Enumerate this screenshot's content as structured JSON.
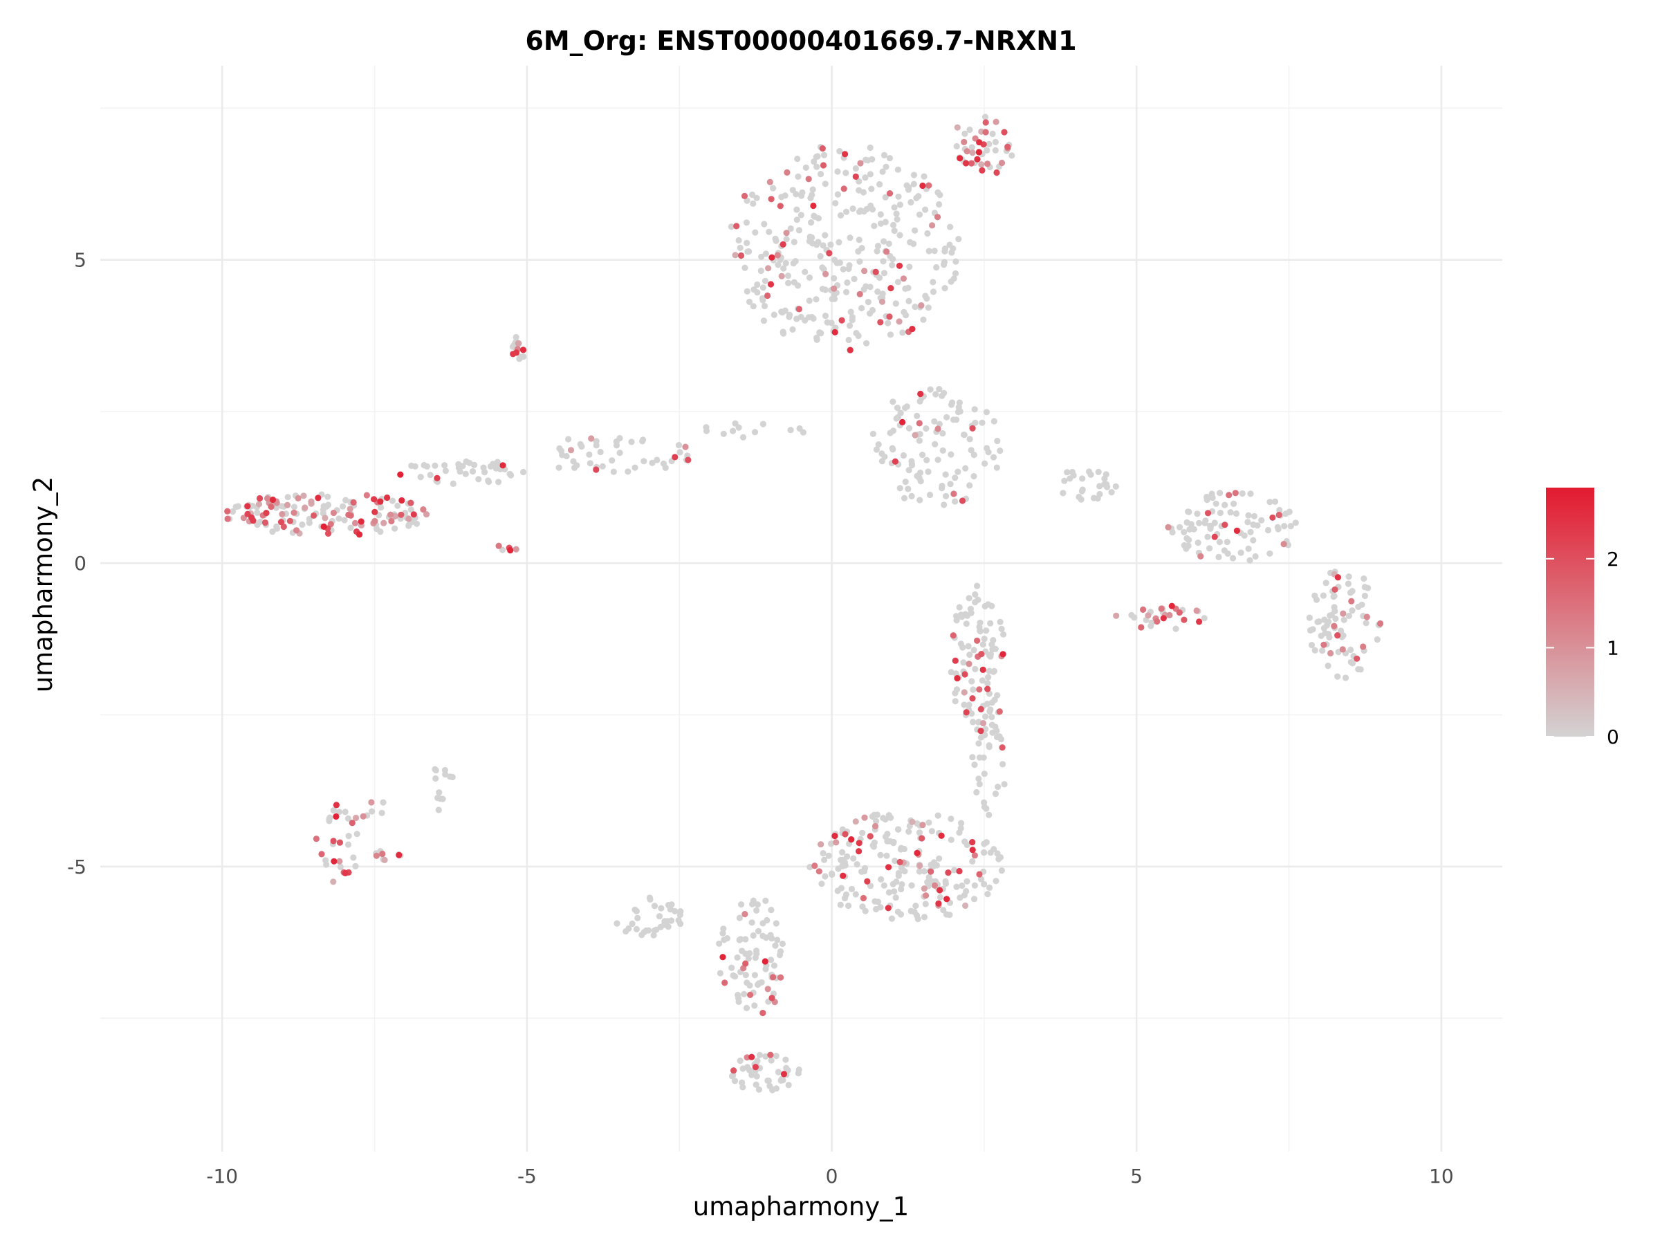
{
  "chart_data": {
    "type": "scatter",
    "title": "6M_Org: ENST00000401669.7-NRXN1",
    "xlabel": "umapharmony_1",
    "ylabel": "umapharmony_2",
    "xlim": [
      -12.0,
      11.0
    ],
    "ylim": [
      -9.7,
      8.2
    ],
    "x_ticks": [
      -10,
      -5,
      0,
      5,
      10
    ],
    "x_tick_labels": [
      "-10",
      "-5",
      "0",
      "5",
      "10"
    ],
    "y_ticks": [
      -5,
      0,
      5
    ],
    "y_tick_labels": [
      "-5",
      "0",
      "5"
    ],
    "grid": true,
    "color_scale": {
      "low_color": "#d3d3d3",
      "high_color": "#e31a2f",
      "min": 0,
      "max": 2.8,
      "ticks": [
        0,
        1,
        2
      ],
      "tick_labels": [
        "0",
        "1",
        "2"
      ],
      "position": "right"
    },
    "point_color": "#d3d3d3",
    "clusters": [
      {
        "cx": -8.3,
        "cy": 0.8,
        "rx": 1.7,
        "ry": 0.35,
        "n": 150,
        "expr_frac": 0.45
      },
      {
        "cx": -6.0,
        "cy": 1.5,
        "rx": 1.2,
        "ry": 0.2,
        "n": 40,
        "expr_frac": 0.2
      },
      {
        "cx": -3.6,
        "cy": 1.8,
        "rx": 1.4,
        "ry": 0.3,
        "n": 45,
        "expr_frac": 0.1
      },
      {
        "cx": -1.2,
        "cy": 2.2,
        "rx": 0.9,
        "ry": 0.15,
        "n": 12,
        "expr_frac": 0.0
      },
      {
        "cx": -5.15,
        "cy": 3.5,
        "rx": 0.1,
        "ry": 0.25,
        "n": 14,
        "expr_frac": 0.4
      },
      {
        "cx": -5.2,
        "cy": 0.25,
        "rx": 0.35,
        "ry": 0.08,
        "n": 5,
        "expr_frac": 0.3
      },
      {
        "cx": 0.2,
        "cy": 5.2,
        "rx": 1.9,
        "ry": 1.7,
        "n": 330,
        "expr_frac": 0.16
      },
      {
        "cx": 2.5,
        "cy": 6.9,
        "rx": 0.5,
        "ry": 0.6,
        "n": 45,
        "expr_frac": 0.45
      },
      {
        "cx": 1.7,
        "cy": 1.9,
        "rx": 1.1,
        "ry": 1.0,
        "n": 110,
        "expr_frac": 0.1
      },
      {
        "cx": 2.4,
        "cy": -1.6,
        "rx": 0.45,
        "ry": 1.3,
        "n": 90,
        "expr_frac": 0.2
      },
      {
        "cx": 4.2,
        "cy": 1.3,
        "rx": 0.5,
        "ry": 0.3,
        "n": 25,
        "expr_frac": 0.0
      },
      {
        "cx": 5.5,
        "cy": -0.9,
        "rx": 0.9,
        "ry": 0.2,
        "n": 30,
        "expr_frac": 0.4
      },
      {
        "cx": 6.6,
        "cy": 0.6,
        "rx": 1.1,
        "ry": 0.6,
        "n": 90,
        "expr_frac": 0.15
      },
      {
        "cx": 8.4,
        "cy": -1.0,
        "rx": 0.6,
        "ry": 0.9,
        "n": 80,
        "expr_frac": 0.1
      },
      {
        "cx": 1.2,
        "cy": -5.0,
        "rx": 1.6,
        "ry": 0.9,
        "n": 210,
        "expr_frac": 0.2
      },
      {
        "cx": -1.3,
        "cy": -6.5,
        "rx": 0.6,
        "ry": 1.0,
        "n": 80,
        "expr_frac": 0.15
      },
      {
        "cx": -1.1,
        "cy": -8.4,
        "rx": 0.6,
        "ry": 0.3,
        "n": 45,
        "expr_frac": 0.1
      },
      {
        "cx": -3.0,
        "cy": -5.8,
        "rx": 0.6,
        "ry": 0.35,
        "n": 35,
        "expr_frac": 0.0
      },
      {
        "cx": 2.6,
        "cy": -3.2,
        "rx": 0.3,
        "ry": 1.0,
        "n": 40,
        "expr_frac": 0.1
      },
      {
        "cx": -8.1,
        "cy": -4.6,
        "rx": 0.4,
        "ry": 0.7,
        "n": 30,
        "expr_frac": 0.45
      },
      {
        "cx": -7.3,
        "cy": -4.8,
        "rx": 0.25,
        "ry": 0.1,
        "n": 10,
        "expr_frac": 0.5
      },
      {
        "cx": -6.4,
        "cy": -3.7,
        "rx": 0.2,
        "ry": 0.4,
        "n": 12,
        "expr_frac": 0.0
      },
      {
        "cx": -7.6,
        "cy": -4.0,
        "rx": 0.3,
        "ry": 0.2,
        "n": 6,
        "expr_frac": 0.3
      }
    ]
  }
}
